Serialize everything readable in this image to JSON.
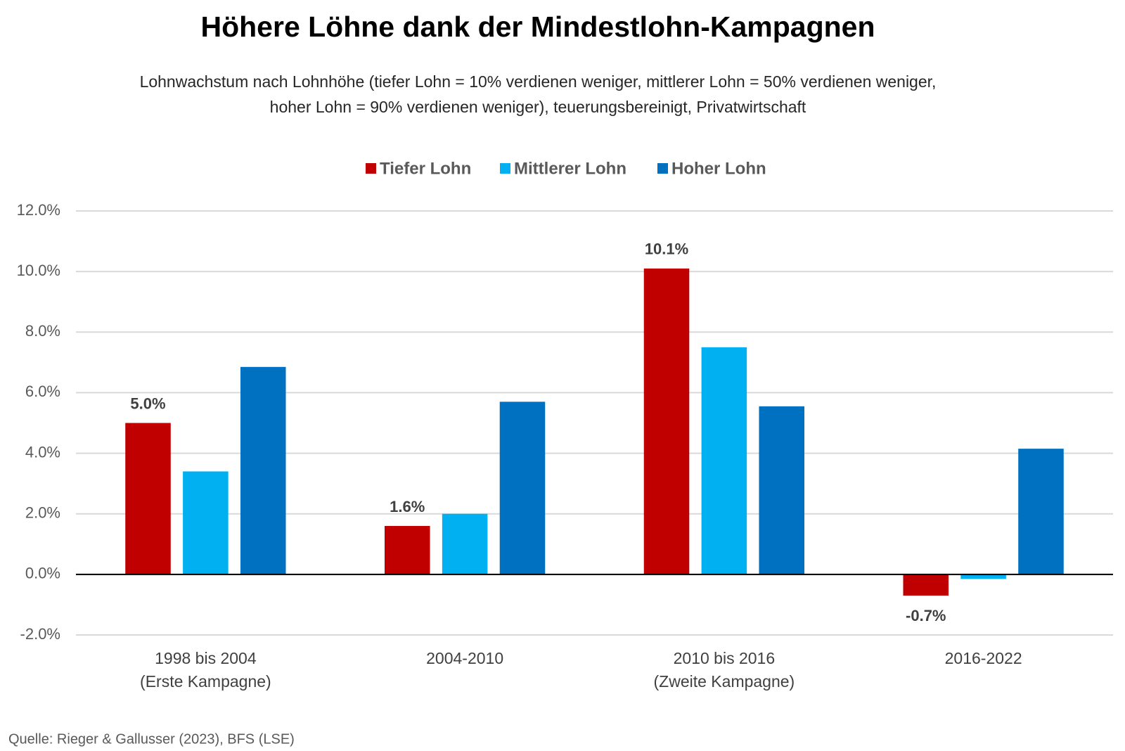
{
  "chart_data": {
    "type": "bar",
    "title": "Höhere Löhne dank der Mindestlohn-Kampagnen",
    "subtitle": [
      "Lohnwachstum nach Lohnhöhe (tiefer Lohn = 10% verdienen weniger, mittlerer Lohn = 50% verdienen weniger,",
      "hoher Lohn = 90% verdienen weniger), teuerungsbereinigt, Privatwirtschaft"
    ],
    "categories": [
      [
        "1998 bis 2004",
        "(Erste Kampagne)"
      ],
      [
        "2004-2010"
      ],
      [
        "2010 bis 2016",
        "(Zweite Kampagne)"
      ],
      [
        "2016-2022"
      ]
    ],
    "series": [
      {
        "name": "Tiefer Lohn",
        "color": "#c00000",
        "values": [
          5.0,
          1.6,
          10.1,
          -0.7
        ],
        "value_labels": [
          "5.0%",
          "1.6%",
          "10.1%",
          "-0.7%"
        ]
      },
      {
        "name": "Mittlerer Lohn",
        "color": "#00b0f0",
        "values": [
          3.4,
          2.0,
          7.5,
          -0.15
        ]
      },
      {
        "name": "Hoher Lohn",
        "color": "#0070c0",
        "values": [
          6.85,
          5.7,
          5.55,
          4.15
        ]
      }
    ],
    "ylim": [
      -2,
      12
    ],
    "yticks": [
      {
        "value": -2,
        "label": "-2.0%"
      },
      {
        "value": 0,
        "label": "0.0%"
      },
      {
        "value": 2,
        "label": "2.0%"
      },
      {
        "value": 4,
        "label": "4.0%"
      },
      {
        "value": 6,
        "label": "6.0%"
      },
      {
        "value": 8,
        "label": "8.0%"
      },
      {
        "value": 10,
        "label": "10.0%"
      },
      {
        "value": 12,
        "label": "12.0%"
      }
    ],
    "grid": true,
    "legend": "top",
    "source": "Quelle: Rieger & Gallusser (2023), BFS (LSE)"
  }
}
